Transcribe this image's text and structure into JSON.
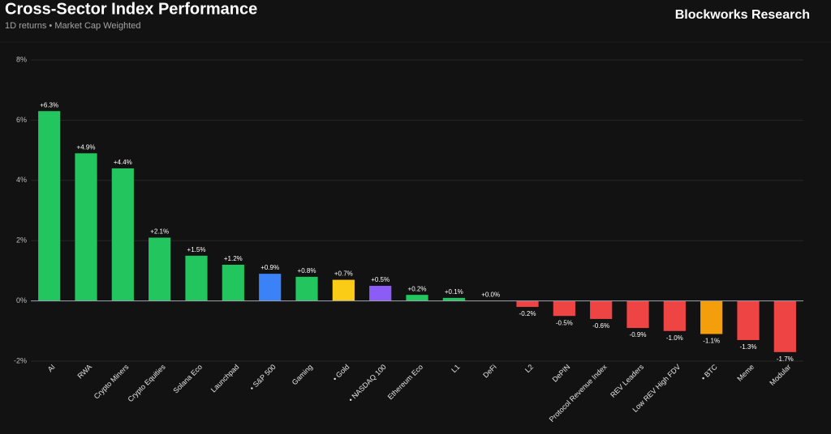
{
  "chart_data": {
    "type": "bar",
    "title": "Cross-Sector Index Performance",
    "subtitle": "1D returns • Market Cap Weighted",
    "source": "Blockworks Research",
    "categories": [
      "AI",
      "RWA",
      "Crypto Miners",
      "Crypto Equities",
      "Solana Eco",
      "Launchpad",
      "• S&P 500",
      "Gaming",
      "• Gold",
      "• NASDAQ 100",
      "Ethereum Eco",
      "L1",
      "DeFi",
      "L2",
      "DePIN",
      "Protocol Revenue Index",
      "REV Leaders",
      "Low REV High FDV",
      "• BTC",
      "Meme",
      "Modular"
    ],
    "values": [
      6.3,
      4.9,
      4.4,
      2.1,
      1.5,
      1.2,
      0.9,
      0.8,
      0.7,
      0.5,
      0.2,
      0.1,
      0.0,
      -0.2,
      -0.5,
      -0.6,
      -0.9,
      -1.0,
      -1.1,
      -1.3,
      -1.7
    ],
    "value_labels": [
      "+6.3%",
      "+4.9%",
      "+4.4%",
      "+2.1%",
      "+1.5%",
      "+1.2%",
      "+0.9%",
      "+0.8%",
      "+0.7%",
      "+0.5%",
      "+0.2%",
      "+0.1%",
      "+0.0%",
      "-0.2%",
      "-0.5%",
      "-0.6%",
      "-0.9%",
      "-1.0%",
      "-1.1%",
      "-1.3%",
      "-1.7%"
    ],
    "colors": [
      "#22c55e",
      "#22c55e",
      "#22c55e",
      "#22c55e",
      "#22c55e",
      "#22c55e",
      "#3b82f6",
      "#22c55e",
      "#facc15",
      "#8b5cf6",
      "#22c55e",
      "#22c55e",
      "#22c55e",
      "#ef4444",
      "#ef4444",
      "#ef4444",
      "#ef4444",
      "#ef4444",
      "#f59e0b",
      "#ef4444",
      "#ef4444"
    ],
    "ylim": [
      -2,
      8
    ],
    "yticks": [
      {
        "value": -2,
        "label": "-2%"
      },
      {
        "value": 0,
        "label": "0%"
      },
      {
        "value": 2,
        "label": "2%"
      },
      {
        "value": 4,
        "label": "4%"
      },
      {
        "value": 6,
        "label": "6%"
      },
      {
        "value": 8,
        "label": "8%"
      }
    ],
    "grid": true
  }
}
